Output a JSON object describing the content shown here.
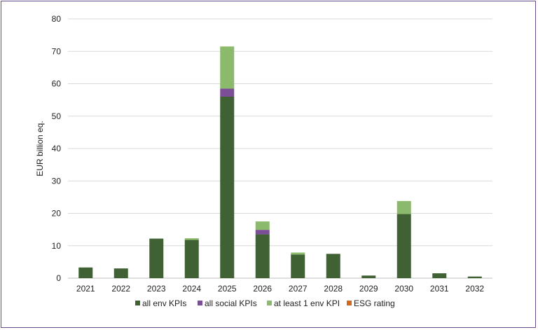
{
  "chart_data": {
    "type": "bar",
    "stacked": true,
    "title": "",
    "xlabel": "",
    "ylabel": "EUR billion eq.",
    "ylim": [
      0,
      80
    ],
    "yticks": [
      0,
      10,
      20,
      30,
      40,
      50,
      60,
      70,
      80
    ],
    "grid": true,
    "legend_position": "bottom",
    "categories": [
      "2021",
      "2022",
      "2023",
      "2024",
      "2025",
      "2026",
      "2027",
      "2028",
      "2029",
      "2030",
      "2031",
      "2032"
    ],
    "series": [
      {
        "name": "all env KPIs",
        "color": "#3f6134",
        "values": [
          3.3,
          3.0,
          12.2,
          11.8,
          56.0,
          13.5,
          7.3,
          7.5,
          0.8,
          19.8,
          1.5,
          0.5
        ]
      },
      {
        "name": "all social KPIs",
        "color": "#7b4f98",
        "values": [
          0,
          0,
          0,
          0,
          2.5,
          1.4,
          0,
          0,
          0,
          0,
          0,
          0
        ]
      },
      {
        "name": "at least 1 env KPI",
        "color": "#8cba6c",
        "values": [
          0,
          0,
          0,
          0.5,
          13.0,
          2.6,
          0.6,
          0,
          0,
          4.0,
          0,
          0
        ]
      },
      {
        "name": "ESG rating",
        "color": "#d2691e",
        "values": [
          0,
          0,
          0,
          0,
          0,
          0,
          0,
          0,
          0,
          0,
          0,
          0
        ]
      }
    ]
  }
}
